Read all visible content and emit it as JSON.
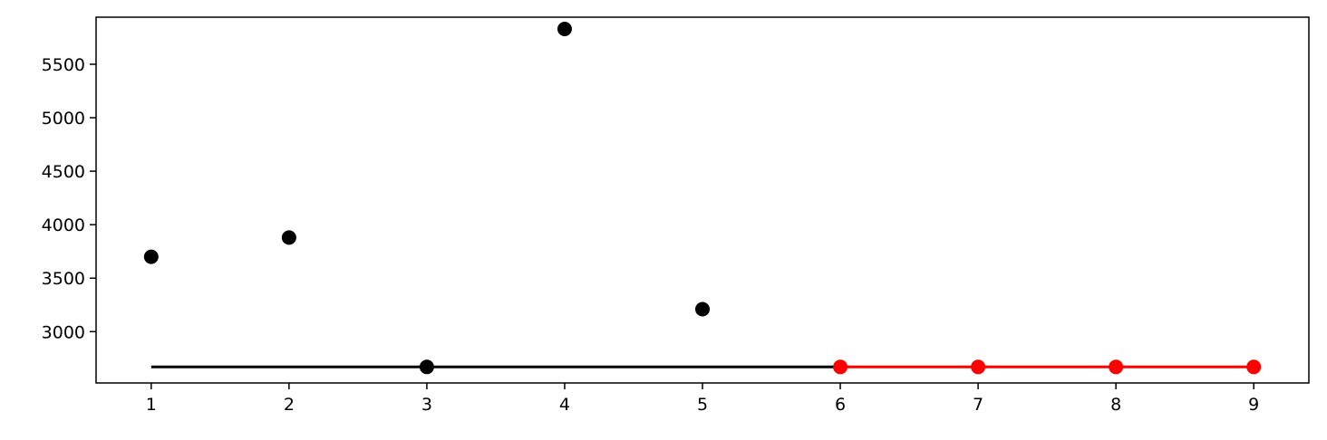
{
  "chart_data": {
    "type": "line",
    "title": "",
    "xlabel": "",
    "ylabel": "",
    "xlim": [
      0.6,
      9.4
    ],
    "ylim": [
      2520,
      5940
    ],
    "grid": false,
    "x_ticks": [
      1,
      2,
      3,
      4,
      5,
      6,
      7,
      8,
      9
    ],
    "y_ticks": [
      3000,
      3500,
      4000,
      4500,
      5000,
      5500
    ],
    "series": [
      {
        "color": "#000000",
        "style": "points",
        "x": [
          1,
          2,
          3,
          4,
          5
        ],
        "y": [
          3700,
          3880,
          2670,
          5830,
          3210
        ]
      },
      {
        "color": "#000000",
        "style": "line",
        "x": [
          1,
          6
        ],
        "y": [
          2670,
          2670
        ]
      },
      {
        "color": "#ff0000",
        "style": "line-markers",
        "x": [
          6,
          7,
          8,
          9
        ],
        "y": [
          2670,
          2670,
          2670,
          2670
        ]
      }
    ]
  }
}
